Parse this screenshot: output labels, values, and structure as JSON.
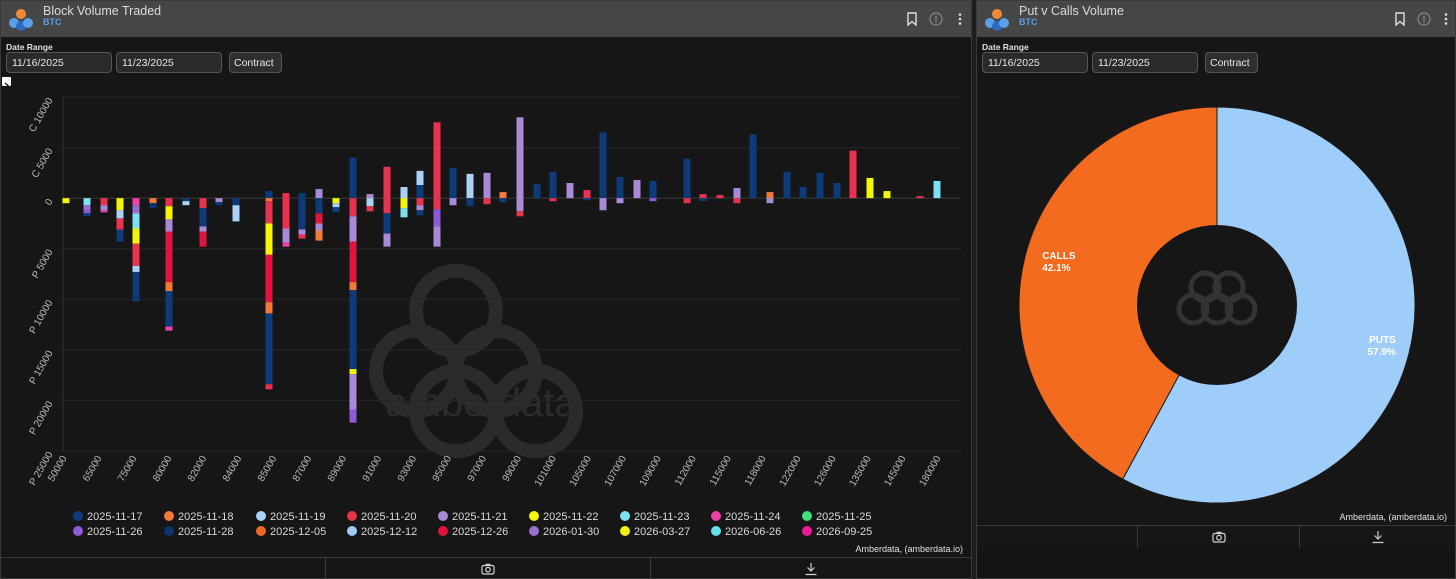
{
  "colors": {
    "2025-11-17": "#0d3b7a",
    "2025-11-18": "#f07a3a",
    "2025-11-19": "#a9d2f5",
    "2025-11-20": "#e8334f",
    "2025-11-21": "#a98ad6",
    "2025-11-22": "#f5f50a",
    "2025-11-23": "#7be3ef",
    "2025-11-24": "#ef3fa8",
    "2025-11-25": "#3fe07a",
    "2025-11-26": "#8e5ad8",
    "2025-11-28": "#0a3370",
    "2025-12-05": "#ee6a22",
    "2025-12-12": "#a0ccf4",
    "2025-12-26": "#e0143c",
    "2026-01-30": "#9a6ed2",
    "2026-03-27": "#f0ee12",
    "2026-06-26": "#62e2ea",
    "2026-09-25": "#ee1a9c",
    "calls": "#f26b1f",
    "puts": "#9dcdf8"
  },
  "left": {
    "title": "Block Volume Traded",
    "subtitle": "BTC",
    "date_range_label": "Date Range",
    "start_date": "11/16/2025",
    "end_date": "11/23/2025",
    "contract_button": "Contract",
    "credit": "Amberdata, (amberdata.io)",
    "watermark": "amberdata"
  },
  "right": {
    "title": "Put v Calls Volume",
    "subtitle": "BTC",
    "date_range_label": "Date Range",
    "start_date": "11/16/2025",
    "end_date": "11/23/2025",
    "contract_button": "Contract",
    "credit": "Amberdata, (amberdata.io)"
  },
  "chart_data": [
    {
      "type": "bar",
      "stacked": true,
      "title": "Block Volume Traded",
      "ylim": [
        -25000,
        10000
      ],
      "y_ticks": [
        {
          "value": 10000,
          "label": "C 10000"
        },
        {
          "value": 5000,
          "label": "C 5000"
        },
        {
          "value": 0,
          "label": "0"
        },
        {
          "value": -5000,
          "label": "P 5000"
        },
        {
          "value": -10000,
          "label": "P 10000"
        },
        {
          "value": -15000,
          "label": "P 15000"
        },
        {
          "value": -20000,
          "label": "P 20000"
        },
        {
          "value": -25000,
          "label": "P 25000"
        }
      ],
      "grid": true,
      "legend_position": "bottom",
      "x_tick_labels": [
        "50000",
        "65000",
        "75000",
        "80000",
        "82000",
        "84000",
        "85000",
        "87000",
        "89000",
        "91000",
        "93000",
        "95000",
        "97000",
        "99000",
        "101000",
        "105000",
        "107000",
        "109000",
        "112000",
        "115000",
        "118000",
        "122000",
        "126000",
        "135000",
        "145000",
        "180000"
      ],
      "legend": [
        "2025-11-17",
        "2025-11-18",
        "2025-11-19",
        "2025-11-20",
        "2025-11-21",
        "2025-11-22",
        "2025-11-23",
        "2025-11-24",
        "2025-11-25",
        "2025-11-26",
        "2025-11-28",
        "2025-12-05",
        "2025-12-12",
        "2025-12-26",
        "2026-01-30",
        "2026-03-27",
        "2026-06-26",
        "2026-09-25"
      ],
      "bars": [
        {
          "x": 65,
          "segs": [
            [
              -500,
              "2025-11-22"
            ]
          ]
        },
        {
          "x": 86,
          "segs": [
            [
              -700,
              "2025-11-23"
            ],
            [
              -500,
              "2026-01-30"
            ],
            [
              -300,
              "2025-11-26"
            ],
            [
              -300,
              "2025-11-17"
            ]
          ]
        },
        {
          "x": 103,
          "segs": [
            [
              -700,
              "2025-11-20"
            ],
            [
              -500,
              "2025-11-21"
            ],
            [
              -200,
              "2025-11-24"
            ]
          ]
        },
        {
          "x": 119,
          "segs": [
            [
              -1200,
              "2025-11-22"
            ],
            [
              -800,
              "2025-11-19"
            ],
            [
              -1100,
              "2025-11-20"
            ],
            [
              -1200,
              "2025-11-17"
            ]
          ]
        },
        {
          "x": 135,
          "segs": [
            [
              -700,
              "2025-11-24"
            ],
            [
              -800,
              "2026-01-30"
            ],
            [
              -1500,
              "2025-11-23"
            ],
            [
              -1500,
              "2025-11-22"
            ],
            [
              -2200,
              "2025-11-20"
            ],
            [
              -600,
              "2025-11-19"
            ],
            [
              -2900,
              "2025-11-17"
            ]
          ]
        },
        {
          "x": 152,
          "segs": [
            [
              -500,
              "2025-11-18"
            ],
            [
              -500,
              "2025-11-28"
            ]
          ]
        },
        {
          "x": 168,
          "segs": [
            [
              -800,
              "2025-11-20"
            ],
            [
              -1300,
              "2025-11-22"
            ],
            [
              -1200,
              "2025-11-21"
            ],
            [
              -5000,
              "2025-12-26"
            ],
            [
              -900,
              "2025-11-18"
            ],
            [
              -3500,
              "2025-11-17"
            ],
            [
              -400,
              "2025-11-24"
            ]
          ]
        },
        {
          "x": 185,
          "segs": [
            [
              -300,
              "2025-11-17"
            ],
            [
              -400,
              "2025-11-19"
            ]
          ]
        },
        {
          "x": 202,
          "segs": [
            [
              -1000,
              "2025-11-20"
            ],
            [
              -1800,
              "2025-11-17"
            ],
            [
              -500,
              "2025-11-21"
            ],
            [
              -1500,
              "2025-12-26"
            ]
          ]
        },
        {
          "x": 218,
          "segs": [
            [
              -400,
              "2025-11-21"
            ],
            [
              -300,
              "2025-11-17"
            ]
          ]
        },
        {
          "x": 235,
          "segs": [
            [
              -700,
              "2025-11-17"
            ],
            [
              -1600,
              "2025-11-19"
            ]
          ]
        },
        {
          "x": 268,
          "segs": [
            [
              700,
              "2025-11-17"
            ],
            [
              -300,
              "2025-11-18"
            ],
            [
              -2200,
              "2025-11-20"
            ],
            [
              -3100,
              "2025-11-22"
            ],
            [
              -4700,
              "2025-12-26"
            ],
            [
              -1100,
              "2025-11-18"
            ],
            [
              -7000,
              "2025-11-17"
            ],
            [
              -500,
              "2025-11-20"
            ]
          ]
        },
        {
          "x": 285,
          "segs": [
            [
              500,
              "2025-11-20"
            ],
            [
              -3000,
              "2025-11-20"
            ],
            [
              -1400,
              "2025-11-21"
            ],
            [
              -400,
              "2025-11-24"
            ]
          ]
        },
        {
          "x": 301,
          "segs": [
            [
              500,
              "2025-11-17"
            ],
            [
              -3100,
              "2025-11-17"
            ],
            [
              -500,
              "2025-11-21"
            ],
            [
              -400,
              "2025-11-20"
            ]
          ]
        },
        {
          "x": 318,
          "segs": [
            [
              900,
              "2025-11-21"
            ],
            [
              -1500,
              "2025-11-17"
            ],
            [
              -1000,
              "2025-12-26"
            ],
            [
              -700,
              "2025-11-21"
            ],
            [
              -1000,
              "2025-11-18"
            ]
          ]
        },
        {
          "x": 335,
          "segs": [
            [
              -500,
              "2025-11-22"
            ],
            [
              -400,
              "2025-11-19"
            ],
            [
              -500,
              "2025-11-17"
            ]
          ]
        },
        {
          "x": 352,
          "segs": [
            [
              4000,
              "2025-11-17"
            ],
            [
              -1800,
              "2025-11-20"
            ],
            [
              -2500,
              "2025-11-21"
            ],
            [
              -4000,
              "2025-12-26"
            ],
            [
              -800,
              "2025-11-18"
            ],
            [
              -7800,
              "2025-11-17"
            ],
            [
              -500,
              "2025-11-22"
            ],
            [
              -3500,
              "2025-11-21"
            ],
            [
              -1300,
              "2025-11-26"
            ]
          ]
        },
        {
          "x": 369,
          "segs": [
            [
              400,
              "2025-11-21"
            ],
            [
              -800,
              "2025-11-19"
            ],
            [
              -500,
              "2025-11-20"
            ]
          ]
        },
        {
          "x": 386,
          "segs": [
            [
              3100,
              "2025-11-20"
            ],
            [
              -1500,
              "2025-11-20"
            ],
            [
              -2000,
              "2025-11-17"
            ],
            [
              -1300,
              "2025-11-21"
            ]
          ]
        },
        {
          "x": 403,
          "segs": [
            [
              1100,
              "2025-11-19"
            ],
            [
              -1000,
              "2025-11-22"
            ],
            [
              -900,
              "2025-11-23"
            ]
          ]
        },
        {
          "x": 419,
          "segs": [
            [
              1300,
              "2025-11-17"
            ],
            [
              1400,
              "2025-11-19"
            ],
            [
              -700,
              "2025-11-20"
            ],
            [
              -500,
              "2025-11-21"
            ],
            [
              -500,
              "2025-11-17"
            ]
          ]
        },
        {
          "x": 436,
          "segs": [
            [
              7500,
              "2025-11-20"
            ],
            [
              -1100,
              "2025-11-20"
            ],
            [
              -1700,
              "2025-11-26"
            ],
            [
              -2000,
              "2025-11-21"
            ]
          ]
        },
        {
          "x": 452,
          "segs": [
            [
              3000,
              "2025-11-17"
            ],
            [
              -700,
              "2025-11-21"
            ]
          ]
        },
        {
          "x": 469,
          "segs": [
            [
              2400,
              "2025-11-19"
            ],
            [
              -800,
              "2025-11-17"
            ]
          ]
        },
        {
          "x": 486,
          "segs": [
            [
              2500,
              "2025-11-21"
            ],
            [
              -600,
              "2025-11-20"
            ]
          ]
        },
        {
          "x": 502,
          "segs": [
            [
              600,
              "2025-11-18"
            ],
            [
              -400,
              "2025-11-17"
            ]
          ]
        },
        {
          "x": 519,
          "segs": [
            [
              8000,
              "2025-11-21"
            ],
            [
              -1300,
              "2025-11-21"
            ],
            [
              -500,
              "2025-11-20"
            ]
          ]
        },
        {
          "x": 536,
          "segs": [
            [
              1400,
              "2025-11-17"
            ]
          ]
        },
        {
          "x": 552,
          "segs": [
            [
              2600,
              "2025-11-17"
            ],
            [
              -300,
              "2025-11-20"
            ]
          ]
        },
        {
          "x": 569,
          "segs": [
            [
              1500,
              "2025-11-21"
            ]
          ]
        },
        {
          "x": 586,
          "segs": [
            [
              800,
              "2025-11-20"
            ],
            [
              -200,
              "2025-11-17"
            ]
          ]
        },
        {
          "x": 602,
          "segs": [
            [
              6500,
              "2025-11-17"
            ],
            [
              -1200,
              "2025-11-21"
            ]
          ]
        },
        {
          "x": 619,
          "segs": [
            [
              2100,
              "2025-11-17"
            ],
            [
              -500,
              "2025-11-21"
            ]
          ]
        },
        {
          "x": 636,
          "segs": [
            [
              1800,
              "2025-11-21"
            ]
          ]
        },
        {
          "x": 652,
          "segs": [
            [
              1700,
              "2025-11-17"
            ],
            [
              -300,
              "2025-11-26"
            ]
          ]
        },
        {
          "x": 686,
          "segs": [
            [
              3900,
              "2025-11-17"
            ],
            [
              -500,
              "2025-11-20"
            ]
          ]
        },
        {
          "x": 702,
          "segs": [
            [
              400,
              "2025-11-20"
            ],
            [
              -300,
              "2025-11-17"
            ]
          ]
        },
        {
          "x": 719,
          "segs": [
            [
              300,
              "2025-11-20"
            ]
          ]
        },
        {
          "x": 736,
          "segs": [
            [
              1000,
              "2025-11-21"
            ],
            [
              -500,
              "2025-11-20"
            ]
          ]
        },
        {
          "x": 752,
          "segs": [
            [
              6300,
              "2025-11-17"
            ]
          ]
        },
        {
          "x": 769,
          "segs": [
            [
              600,
              "2025-11-18"
            ],
            [
              -500,
              "2025-11-21"
            ]
          ]
        },
        {
          "x": 786,
          "segs": [
            [
              2600,
              "2025-11-17"
            ]
          ]
        },
        {
          "x": 802,
          "segs": [
            [
              1100,
              "2025-11-17"
            ]
          ]
        },
        {
          "x": 819,
          "segs": [
            [
              2500,
              "2025-11-17"
            ]
          ]
        },
        {
          "x": 836,
          "segs": [
            [
              1500,
              "2025-11-17"
            ]
          ]
        },
        {
          "x": 852,
          "segs": [
            [
              4700,
              "2025-11-20"
            ]
          ]
        },
        {
          "x": 869,
          "segs": [
            [
              2000,
              "2025-11-22"
            ]
          ]
        },
        {
          "x": 886,
          "segs": [
            [
              700,
              "2025-11-22"
            ]
          ]
        },
        {
          "x": 919,
          "segs": [
            [
              200,
              "2025-11-20"
            ]
          ]
        },
        {
          "x": 936,
          "segs": [
            [
              1700,
              "2025-11-23"
            ]
          ]
        }
      ]
    },
    {
      "type": "pie",
      "donut": true,
      "title": "Put v Calls Volume",
      "slices": [
        {
          "label": "PUTS",
          "value": 57.9,
          "display": "57.9%",
          "color_key": "puts"
        },
        {
          "label": "CALLS",
          "value": 42.1,
          "display": "42.1%",
          "color_key": "calls"
        }
      ]
    }
  ]
}
